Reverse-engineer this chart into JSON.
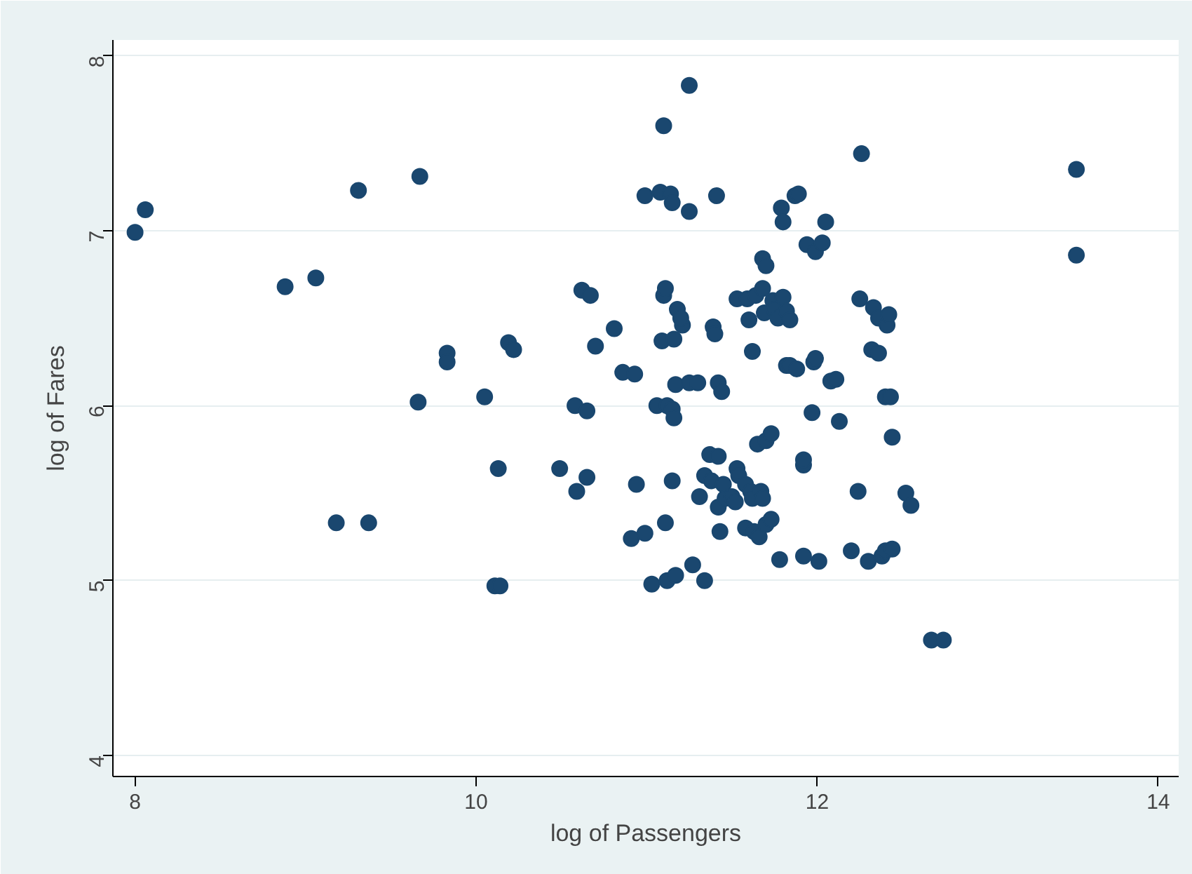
{
  "chart_data": {
    "type": "scatter",
    "xlabel": "log of Passengers",
    "ylabel": "log of Fares",
    "xlim": [
      7.87,
      14.12
    ],
    "ylim": [
      3.88,
      8.09
    ],
    "xticks": [
      8,
      10,
      12,
      14
    ],
    "yticks": [
      4,
      5,
      6,
      7,
      8
    ],
    "grid": "y",
    "marker": "circle",
    "series": [
      {
        "color": "#1a476f",
        "x": [
          8.0,
          8.06,
          8.88,
          9.06,
          9.31,
          9.18,
          9.37,
          9.67,
          9.66,
          9.83,
          9.83,
          10.05,
          10.13,
          10.11,
          10.14,
          10.19,
          10.22,
          10.49,
          10.58,
          10.59,
          10.62,
          10.65,
          10.65,
          10.67,
          10.7,
          10.81,
          10.86,
          10.93,
          10.91,
          10.94,
          10.99,
          10.99,
          11.03,
          11.06,
          11.08,
          11.1,
          11.1,
          11.09,
          11.11,
          11.12,
          11.14,
          11.11,
          11.12,
          11.15,
          11.16,
          11.15,
          11.16,
          11.17,
          11.18,
          11.21,
          11.15,
          11.17,
          11.25,
          11.25,
          11.2,
          11.25,
          11.27,
          11.3,
          11.31,
          11.34,
          11.34,
          11.37,
          11.38,
          11.39,
          11.4,
          11.41,
          11.42,
          11.42,
          11.42,
          11.43,
          11.44,
          11.45,
          11.46,
          11.5,
          11.52,
          11.53,
          11.53,
          11.54,
          11.58,
          11.58,
          11.59,
          11.6,
          11.61,
          11.62,
          11.62,
          11.63,
          11.64,
          11.65,
          11.66,
          11.67,
          11.68,
          11.68,
          11.68,
          11.69,
          11.7,
          11.7,
          11.7,
          11.73,
          11.73,
          11.74,
          11.75,
          11.77,
          11.78,
          11.79,
          11.8,
          11.8,
          11.82,
          11.82,
          11.84,
          11.84,
          11.87,
          11.88,
          11.89,
          11.92,
          11.92,
          11.92,
          11.94,
          11.97,
          11.98,
          11.99,
          11.99,
          12.01,
          12.03,
          12.05,
          12.08,
          12.11,
          12.13,
          12.2,
          12.24,
          12.25,
          12.26,
          12.3,
          12.32,
          12.33,
          12.36,
          12.36,
          12.38,
          12.4,
          12.4,
          12.41,
          12.42,
          12.43,
          12.44,
          12.44,
          12.52,
          12.55,
          12.67,
          12.74,
          13.52,
          13.52
        ],
        "values": [
          6.99,
          7.12,
          6.68,
          6.73,
          7.23,
          5.33,
          5.33,
          7.31,
          6.02,
          6.3,
          6.25,
          6.05,
          5.64,
          4.97,
          4.97,
          6.36,
          6.32,
          5.64,
          6.0,
          5.51,
          6.66,
          5.97,
          5.59,
          6.63,
          6.34,
          6.44,
          6.19,
          6.18,
          5.24,
          5.55,
          7.2,
          5.27,
          4.98,
          6.0,
          7.22,
          6.63,
          7.6,
          6.37,
          6.67,
          6.0,
          7.21,
          5.33,
          5.0,
          5.98,
          5.93,
          7.16,
          6.38,
          5.03,
          6.55,
          6.46,
          5.57,
          6.12,
          7.83,
          7.11,
          6.5,
          6.13,
          5.09,
          6.13,
          5.48,
          5.0,
          5.6,
          5.72,
          5.57,
          6.45,
          6.41,
          7.2,
          6.13,
          5.71,
          5.42,
          5.28,
          6.08,
          5.55,
          5.47,
          5.48,
          5.45,
          6.61,
          5.64,
          5.6,
          5.55,
          5.3,
          6.61,
          6.49,
          5.51,
          6.31,
          5.47,
          5.28,
          6.63,
          5.78,
          5.25,
          5.51,
          6.84,
          5.47,
          6.67,
          6.53,
          6.8,
          5.8,
          5.32,
          5.84,
          5.35,
          6.6,
          6.55,
          6.5,
          5.12,
          7.13,
          7.05,
          6.62,
          6.23,
          6.54,
          6.49,
          6.23,
          7.2,
          6.21,
          7.21,
          5.66,
          5.14,
          5.69,
          6.92,
          5.96,
          6.25,
          6.27,
          6.88,
          5.11,
          6.93,
          7.05,
          6.14,
          6.15,
          5.91,
          5.17,
          5.51,
          6.61,
          7.44,
          5.11,
          6.32,
          6.56,
          6.3,
          6.5,
          5.14,
          6.05,
          5.17,
          6.46,
          6.52,
          6.05,
          5.18,
          5.82,
          5.5,
          5.43,
          4.66,
          4.66,
          7.35,
          6.86
        ]
      }
    ]
  }
}
